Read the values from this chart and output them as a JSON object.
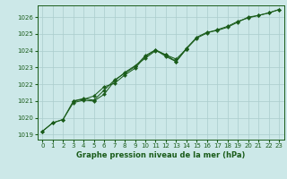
{
  "title": "Graphe pression niveau de la mer (hPa)",
  "bg_color": "#cce8e8",
  "grid_color": "#aacccc",
  "line_color": "#1a5c1a",
  "xlim": [
    -0.5,
    23.5
  ],
  "ylim": [
    1018.7,
    1026.7
  ],
  "yticks": [
    1019,
    1020,
    1021,
    1022,
    1023,
    1024,
    1025,
    1026
  ],
  "xticks": [
    0,
    1,
    2,
    3,
    4,
    5,
    6,
    7,
    8,
    9,
    10,
    11,
    12,
    13,
    14,
    15,
    16,
    17,
    18,
    19,
    20,
    21,
    22,
    23
  ],
  "line1_x": [
    0,
    1,
    2,
    3,
    4,
    5,
    6,
    7,
    8,
    9,
    10,
    11,
    12,
    13,
    14,
    15,
    16,
    17,
    18,
    19,
    20,
    21,
    22,
    23
  ],
  "line1_y": [
    1019.2,
    1019.7,
    1019.9,
    1020.9,
    1021.05,
    1021.0,
    1021.4,
    1022.2,
    1022.7,
    1023.1,
    1023.55,
    1024.0,
    1023.75,
    1023.35,
    1024.1,
    1024.75,
    1025.05,
    1025.25,
    1025.45,
    1025.75,
    1025.95,
    1026.1,
    1026.25,
    1026.45
  ],
  "line2_x": [
    0,
    1,
    2,
    3,
    4,
    5,
    6,
    7,
    8,
    9,
    10,
    11,
    12,
    13,
    14,
    15,
    16,
    17,
    18,
    19,
    20,
    21,
    22,
    23
  ],
  "line2_y": [
    1019.2,
    1019.7,
    1019.9,
    1021.0,
    1021.15,
    1021.05,
    1021.65,
    1022.25,
    1022.65,
    1023.05,
    1023.7,
    1024.05,
    1023.65,
    1023.35,
    1024.15,
    1024.8,
    1025.1,
    1025.2,
    1025.4,
    1025.7,
    1026.0,
    1026.1,
    1026.25,
    1026.45
  ],
  "line3_x": [
    3,
    4,
    5,
    6,
    7,
    8,
    9,
    10,
    11,
    12,
    13,
    14
  ],
  "line3_y": [
    1021.0,
    1021.1,
    1021.3,
    1021.85,
    1022.05,
    1022.55,
    1022.95,
    1023.65,
    1024.05,
    1023.75,
    1023.5,
    1024.1
  ],
  "tick_fontsize": 5.0,
  "xlabel_fontsize": 6.0
}
